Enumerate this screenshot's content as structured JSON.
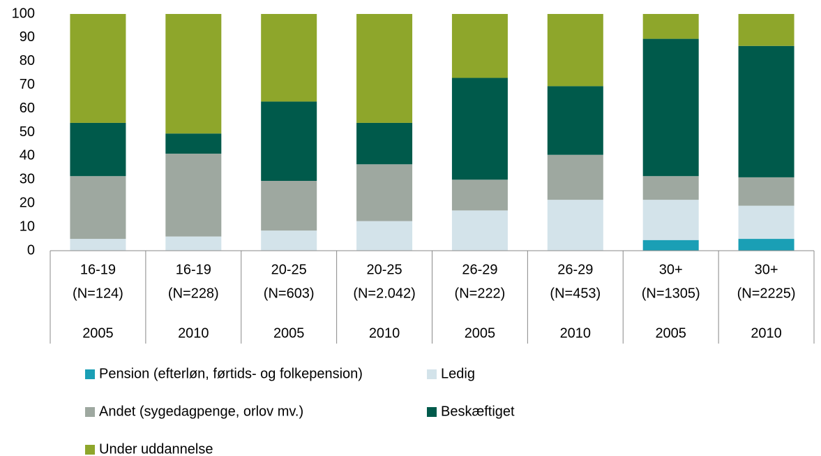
{
  "chart_data": {
    "type": "stacked_bar",
    "categories": [
      "16-19",
      "16-19",
      "20-25",
      "20-25",
      "26-29",
      "26-29",
      "30+",
      "30+"
    ],
    "category_notes": [
      "(N=124)",
      "(N=228)",
      "(N=603)",
      "(N=2.042)",
      "(N=222)",
      "(N=453)",
      "(N=1305)",
      "(N=2225)"
    ],
    "years": [
      "2005",
      "2010",
      "2005",
      "2010",
      "2005",
      "2010",
      "2005",
      "2010"
    ],
    "series": [
      {
        "name": "Pension (efterløn, førtids- og folkepension)",
        "color": "#1a9fb5",
        "values": [
          0,
          0,
          0,
          0,
          0,
          0,
          4.5,
          5
        ]
      },
      {
        "name": "Ledig",
        "color": "#d3e3ea",
        "values": [
          5,
          6,
          8.5,
          12.5,
          17,
          21.5,
          17,
          14
        ]
      },
      {
        "name": "Andet (sygedagpenge, orlov mv.)",
        "color": "#9ea8a0",
        "values": [
          26.5,
          35,
          21,
          24,
          13,
          19,
          10,
          12
        ]
      },
      {
        "name": "Beskæftiget",
        "color": "#005a4b",
        "values": [
          22.5,
          8.5,
          33.5,
          17.5,
          43,
          29,
          58,
          55.5
        ]
      },
      {
        "name": "Under uddannelse",
        "color": "#8ea62b",
        "values": [
          46,
          50.5,
          37,
          46,
          27,
          30.5,
          10.5,
          13.5
        ]
      }
    ],
    "ylim": [
      0,
      100
    ],
    "yticks": [
      0,
      10,
      20,
      30,
      40,
      50,
      60,
      70,
      80,
      90,
      100
    ],
    "grid": false
  }
}
